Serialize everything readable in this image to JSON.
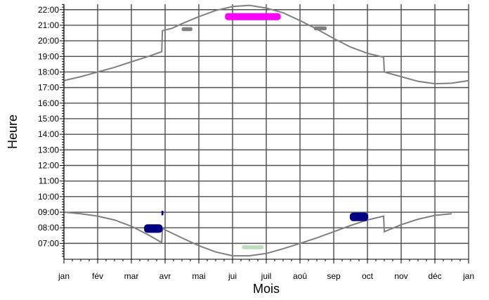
{
  "chart_data": {
    "type": "scatter",
    "xlabel": "Mois",
    "ylabel": "Heure",
    "x_ticks": [
      "jan",
      "fév",
      "mar",
      "avr",
      "mai",
      "jui",
      "juil",
      "aoû",
      "sep",
      "oct",
      "nov",
      "déc",
      "jan"
    ],
    "y_ticks": [
      "07:00",
      "08:00",
      "09:00",
      "10:00",
      "11:00",
      "12:00",
      "13:00",
      "14:00",
      "15:00",
      "16:00",
      "17:00",
      "18:00",
      "19:00",
      "20:00",
      "21:00",
      "22:00"
    ],
    "x_unit": "month (0 = jan, 12 = jan)",
    "y_unit": "hour of day",
    "xlim": [
      0,
      12
    ],
    "ylim": [
      5.98,
      22.35
    ],
    "grid": true,
    "series": [
      {
        "kind": "line",
        "color": "#808080",
        "points": [
          [
            0.0,
            17.45
          ],
          [
            0.5,
            17.7
          ],
          [
            1.0,
            18.0
          ],
          [
            1.5,
            18.3
          ],
          [
            2.0,
            18.65
          ],
          [
            2.5,
            19.0
          ],
          [
            2.9,
            19.3
          ],
          [
            2.92,
            20.65
          ],
          [
            3.2,
            20.8
          ],
          [
            3.5,
            21.1
          ],
          [
            4.0,
            21.55
          ],
          [
            4.5,
            21.95
          ],
          [
            5.0,
            22.2
          ],
          [
            5.5,
            22.28
          ],
          [
            6.0,
            22.1
          ],
          [
            6.5,
            21.8
          ],
          [
            7.0,
            21.3
          ],
          [
            7.5,
            20.75
          ],
          [
            8.0,
            20.15
          ],
          [
            8.5,
            19.6
          ],
          [
            9.0,
            19.2
          ],
          [
            9.48,
            18.95
          ],
          [
            9.5,
            18.0
          ],
          [
            10.0,
            17.7
          ],
          [
            10.5,
            17.4
          ],
          [
            11.0,
            17.25
          ],
          [
            11.5,
            17.28
          ],
          [
            12.0,
            17.45
          ]
        ]
      },
      {
        "kind": "line",
        "color": "#808080",
        "points": [
          [
            0.0,
            9.0
          ],
          [
            0.5,
            8.9
          ],
          [
            1.0,
            8.75
          ],
          [
            1.5,
            8.5
          ],
          [
            2.0,
            8.1
          ],
          [
            2.5,
            7.55
          ],
          [
            2.9,
            7.05
          ],
          [
            2.92,
            7.95
          ],
          [
            3.5,
            7.35
          ],
          [
            4.0,
            6.85
          ],
          [
            4.5,
            6.45
          ],
          [
            5.0,
            6.2
          ],
          [
            5.5,
            6.2
          ],
          [
            6.0,
            6.35
          ],
          [
            6.5,
            6.65
          ],
          [
            7.0,
            7.0
          ],
          [
            7.5,
            7.35
          ],
          [
            8.0,
            7.75
          ],
          [
            8.5,
            8.15
          ],
          [
            9.0,
            8.5
          ],
          [
            9.48,
            8.75
          ],
          [
            9.5,
            7.75
          ],
          [
            10.0,
            8.2
          ],
          [
            10.5,
            8.55
          ],
          [
            11.0,
            8.8
          ],
          [
            11.5,
            8.9
          ]
        ]
      },
      {
        "kind": "blob",
        "color": "#ff00ff",
        "cx": 5.6,
        "cy": 21.55,
        "w": 1.65,
        "h": 0.45
      },
      {
        "kind": "blob",
        "color": "#808080",
        "cx": 3.65,
        "cy": 20.75,
        "w": 0.32,
        "h": 0.25
      },
      {
        "kind": "blob",
        "color": "#808080",
        "cx": 7.6,
        "cy": 20.8,
        "w": 0.38,
        "h": 0.25
      },
      {
        "kind": "blob",
        "color": "#000080",
        "cx": 2.65,
        "cy": 7.95,
        "w": 0.55,
        "h": 0.55
      },
      {
        "kind": "blob",
        "color": "#000080",
        "cx": 2.92,
        "cy": 8.95,
        "w": 0.06,
        "h": 0.3
      },
      {
        "kind": "blob",
        "color": "#000080",
        "cx": 8.75,
        "cy": 8.7,
        "w": 0.55,
        "h": 0.55
      },
      {
        "kind": "blob",
        "color": "#c0dcc0",
        "cx": 5.6,
        "cy": 6.75,
        "w": 0.65,
        "h": 0.25
      }
    ]
  }
}
